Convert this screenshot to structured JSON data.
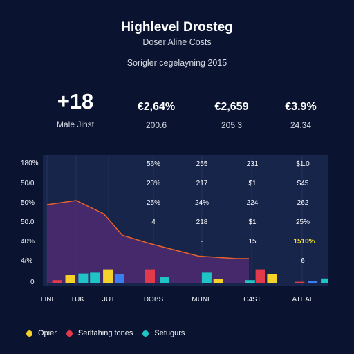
{
  "header": {
    "title": "Highlevel Drosteg",
    "subtitle": "Doser Aline Costs",
    "caption": "Sorigler cegelayning 2015"
  },
  "kpis": [
    {
      "value": "+18",
      "label": "Male Jinst"
    },
    {
      "value": "€2,64%",
      "label": "200.6"
    },
    {
      "value": "€2,659",
      "label": "205 3"
    },
    {
      "value": "€3.9%",
      "label": "24.34"
    }
  ],
  "y_axis_labels": [
    "180%",
    "50/0",
    "50%",
    "50.0",
    "40%",
    "4/%",
    "0"
  ],
  "x_axis_labels": [
    "LINE",
    "TUK",
    "JUT",
    "DOBS",
    "MUNE",
    "C4ST",
    "ATEAL"
  ],
  "table": {
    "columns": [
      [
        "56%",
        "23%",
        "25%",
        "4",
        "",
        ""
      ],
      [
        "255",
        "217",
        "24%",
        "218",
        "-",
        ""
      ],
      [
        "231",
        "$1",
        "224",
        "$1",
        "15",
        ""
      ],
      [
        "$1.0",
        "$45",
        "262",
        "25%",
        "1510%",
        "6"
      ]
    ],
    "highlight": "1510%"
  },
  "chart_data": {
    "type": "area",
    "line": {
      "x": [
        0,
        1,
        2,
        3,
        4,
        5,
        6,
        7
      ],
      "y": [
        95,
        100,
        84,
        58,
        48,
        33,
        30,
        30
      ]
    },
    "bars": [
      {
        "x": 0.3,
        "value": 4,
        "color": "#e23a4a"
      },
      {
        "x": 0.75,
        "value": 10,
        "color": "#f5d22a"
      },
      {
        "x": 1.2,
        "value": 12,
        "color": "#1fc4c4"
      },
      {
        "x": 1.6,
        "value": 13,
        "color": "#1fc4c4"
      },
      {
        "x": 2.05,
        "value": 17,
        "color": "#f5d22a"
      },
      {
        "x": 2.45,
        "value": 11,
        "color": "#3a7ef0"
      },
      {
        "x": 3.5,
        "value": 17,
        "color": "#e23a4a"
      },
      {
        "x": 4.0,
        "value": 8,
        "color": "#1fc4c4"
      },
      {
        "x": 5.45,
        "value": 13,
        "color": "#1fc4c4"
      },
      {
        "x": 5.85,
        "value": 5,
        "color": "#f5d22a"
      },
      {
        "x": 6.95,
        "value": 4,
        "color": "#1fc4c4"
      },
      {
        "x": 7.3,
        "value": 17,
        "color": "#e23a4a"
      },
      {
        "x": 7.7,
        "value": 11,
        "color": "#f5d22a"
      },
      {
        "x": 8.65,
        "value": 2,
        "color": "#e23a4a"
      },
      {
        "x": 9.1,
        "value": 3,
        "color": "#3a7ef0"
      },
      {
        "x": 9.55,
        "value": 6,
        "color": "#1fc4c4"
      }
    ],
    "ylim": [
      0,
      130
    ],
    "xlim": [
      0,
      10
    ]
  },
  "colors": {
    "background": "#0a1430",
    "panel": "#17254b",
    "area_fill": "#4a2a6e",
    "line": "#e8622a",
    "highlight": "#f5e02a"
  },
  "legend": [
    {
      "label": "Opier",
      "color": "#f5d22a"
    },
    {
      "label": "Serltahing tones",
      "color": "#e23a4a"
    },
    {
      "label": "Setugurs",
      "color": "#1fc4c4"
    }
  ]
}
